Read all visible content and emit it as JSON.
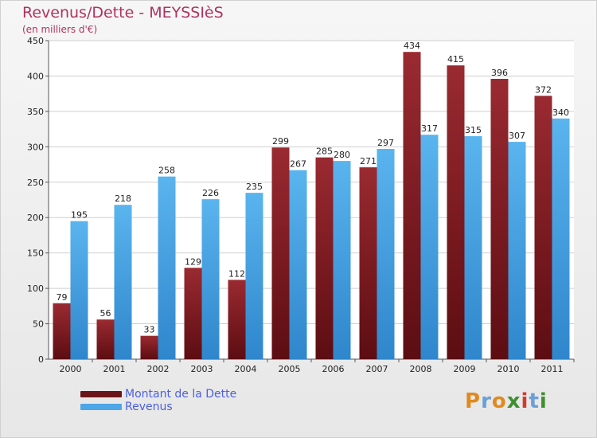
{
  "header": {
    "title": "Revenus/Dette - MEYSSIèS",
    "subtitle": "(en milliers d'€)"
  },
  "legend": {
    "items": [
      {
        "label": "Montant de la Dette",
        "color": "#7a1a1f"
      },
      {
        "label": "Revenus",
        "color": "#4da6e6"
      }
    ]
  },
  "logo": {
    "text": "Proxiti",
    "letters": [
      "P",
      "r",
      "o",
      "x",
      "i",
      "t",
      "i"
    ],
    "colors": [
      "#e08a1e",
      "#6b9fd8",
      "#e08a1e",
      "#3f8f2f",
      "#d23b2e",
      "#6b9fd8",
      "#3f8f2f"
    ]
  },
  "chart_data": {
    "type": "bar",
    "categories": [
      "2000",
      "2001",
      "2002",
      "2003",
      "2004",
      "2005",
      "2006",
      "2007",
      "2008",
      "2009",
      "2010",
      "2011"
    ],
    "series": [
      {
        "name": "Montant de la Dette",
        "values": [
          79,
          56,
          33,
          129,
          112,
          299,
          285,
          271,
          434,
          415,
          396,
          372
        ],
        "color": "#7a1a1f"
      },
      {
        "name": "Revenus",
        "values": [
          195,
          218,
          258,
          226,
          235,
          267,
          280,
          297,
          317,
          315,
          307,
          340
        ],
        "color": "#4da6e6"
      }
    ],
    "title": "Revenus/Dette - MEYSSIèS",
    "ylabel": "(en milliers d'€)",
    "ylim": [
      0,
      450
    ],
    "yticks": [
      0,
      50,
      100,
      150,
      200,
      250,
      300,
      350,
      400,
      450
    ],
    "grid": true,
    "legend_position": "bottom-left"
  }
}
